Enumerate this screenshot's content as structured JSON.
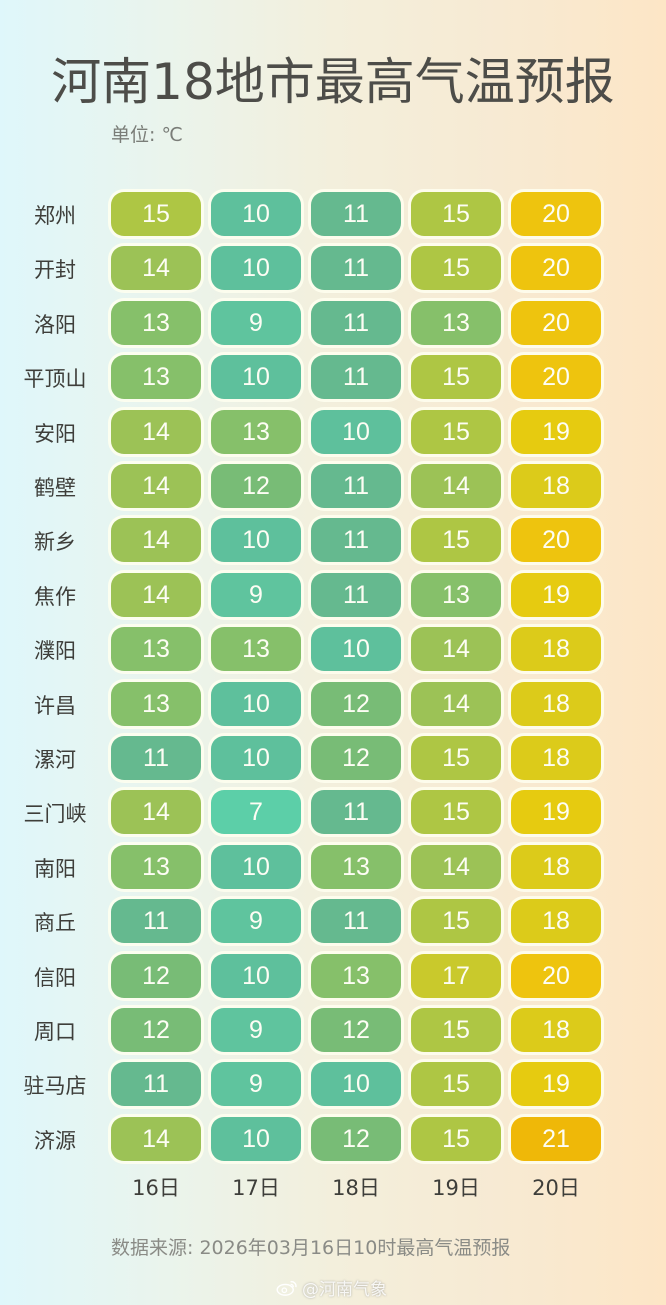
{
  "title": "河南18地市最高气温预报",
  "unit": "单位: ℃",
  "source": "数据来源: 2026年03月16日10时最高气温预报",
  "watermark": "@河南气象",
  "columns": [
    "16日",
    "17日",
    "18日",
    "19日",
    "20日"
  ],
  "rows": [
    {
      "city": "郑州",
      "values": [
        15,
        10,
        11,
        15,
        20
      ]
    },
    {
      "city": "开封",
      "values": [
        14,
        10,
        11,
        15,
        20
      ]
    },
    {
      "city": "洛阳",
      "values": [
        13,
        9,
        11,
        13,
        20
      ]
    },
    {
      "city": "平顶山",
      "values": [
        13,
        10,
        11,
        15,
        20
      ]
    },
    {
      "city": "安阳",
      "values": [
        14,
        13,
        10,
        15,
        19
      ]
    },
    {
      "city": "鹤壁",
      "values": [
        14,
        12,
        11,
        14,
        18
      ]
    },
    {
      "city": "新乡",
      "values": [
        14,
        10,
        11,
        15,
        20
      ]
    },
    {
      "city": "焦作",
      "values": [
        14,
        9,
        11,
        13,
        19
      ]
    },
    {
      "city": "濮阳",
      "values": [
        13,
        13,
        10,
        14,
        18
      ]
    },
    {
      "city": "许昌",
      "values": [
        13,
        10,
        12,
        14,
        18
      ]
    },
    {
      "city": "漯河",
      "values": [
        11,
        10,
        12,
        15,
        18
      ]
    },
    {
      "city": "三门峡",
      "values": [
        14,
        7,
        11,
        15,
        19
      ]
    },
    {
      "city": "南阳",
      "values": [
        13,
        10,
        13,
        14,
        18
      ]
    },
    {
      "city": "商丘",
      "values": [
        11,
        9,
        11,
        15,
        18
      ]
    },
    {
      "city": "信阳",
      "values": [
        12,
        10,
        13,
        17,
        20
      ]
    },
    {
      "city": "周口",
      "values": [
        12,
        9,
        12,
        15,
        18
      ]
    },
    {
      "city": "驻马店",
      "values": [
        11,
        9,
        10,
        15,
        19
      ]
    },
    {
      "city": "济源",
      "values": [
        14,
        10,
        12,
        15,
        21
      ]
    }
  ],
  "color_scale": {
    "7": "#5ccfa8",
    "8": "#5dc9a3",
    "9": "#5fc49e",
    "10": "#5ec09c",
    "11": "#65b98f",
    "12": "#78bc76",
    "13": "#86c06a",
    "14": "#9cc256",
    "15": "#aec644",
    "16": "#bcc838",
    "17": "#c9c92c",
    "18": "#dccb1a",
    "19": "#e6cb10",
    "20": "#eec40e",
    "21": "#efb808"
  },
  "chart_data": {
    "type": "heatmap",
    "title": "河南18地市最高气温预报",
    "subtitle": "单位: ℃",
    "xlabel": "",
    "ylabel": "",
    "x": [
      "16日",
      "17日",
      "18日",
      "19日",
      "20日"
    ],
    "y": [
      "郑州",
      "开封",
      "洛阳",
      "平顶山",
      "安阳",
      "鹤壁",
      "新乡",
      "焦作",
      "濮阳",
      "许昌",
      "漯河",
      "三门峡",
      "南阳",
      "商丘",
      "信阳",
      "周口",
      "驻马店",
      "济源"
    ],
    "values": [
      [
        15,
        10,
        11,
        15,
        20
      ],
      [
        14,
        10,
        11,
        15,
        20
      ],
      [
        13,
        9,
        11,
        13,
        20
      ],
      [
        13,
        10,
        11,
        15,
        20
      ],
      [
        14,
        13,
        10,
        15,
        19
      ],
      [
        14,
        12,
        11,
        14,
        18
      ],
      [
        14,
        10,
        11,
        15,
        20
      ],
      [
        14,
        9,
        11,
        13,
        19
      ],
      [
        13,
        13,
        10,
        14,
        18
      ],
      [
        13,
        10,
        12,
        14,
        18
      ],
      [
        11,
        10,
        12,
        15,
        18
      ],
      [
        14,
        7,
        11,
        15,
        19
      ],
      [
        13,
        10,
        13,
        14,
        18
      ],
      [
        11,
        9,
        11,
        15,
        18
      ],
      [
        12,
        10,
        13,
        17,
        20
      ],
      [
        12,
        9,
        12,
        15,
        18
      ],
      [
        11,
        9,
        10,
        15,
        19
      ],
      [
        14,
        10,
        12,
        15,
        21
      ]
    ],
    "annotations": [
      "数据来源: 2026年03月16日10时最高气温预报"
    ],
    "value_range": [
      7,
      21
    ],
    "color_low": "#5ccfa8",
    "color_high": "#efb808",
    "grid": false,
    "legend": "none"
  }
}
